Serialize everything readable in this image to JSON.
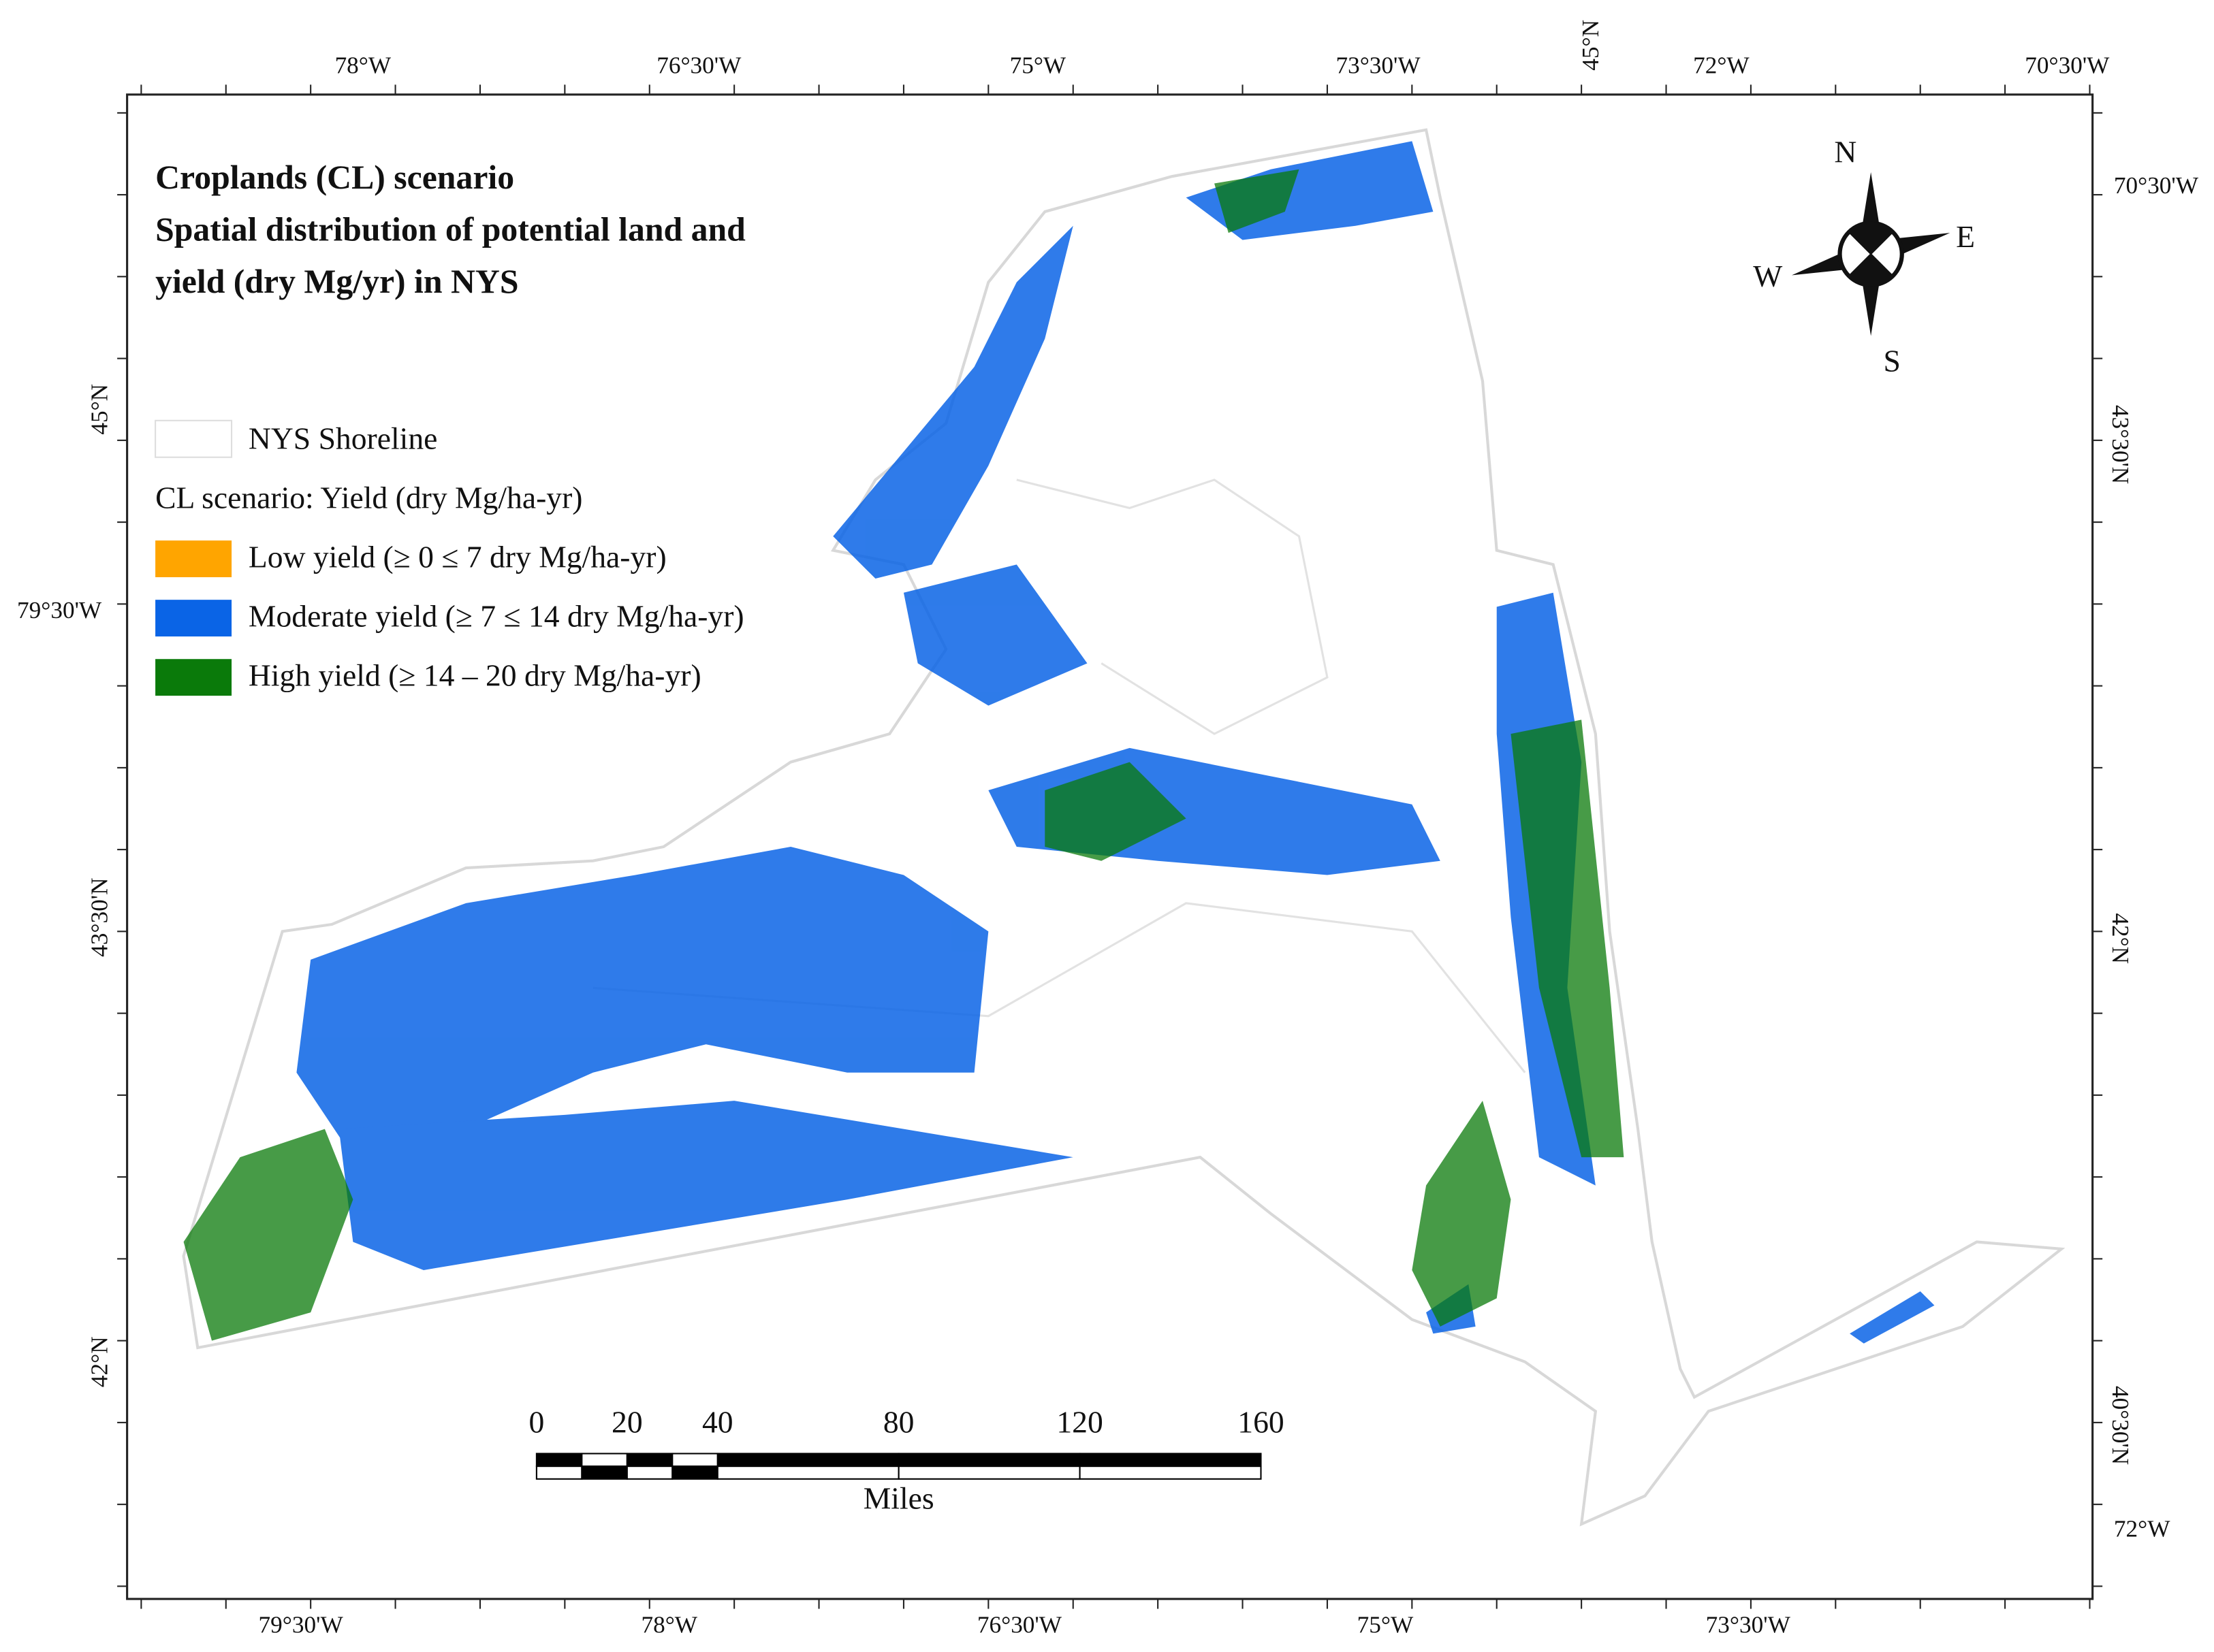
{
  "title": {
    "lines": [
      "Croplands (CL) scenario",
      "Spatial distribution of potential land and",
      "yield (dry Mg/yr) in NYS"
    ]
  },
  "legend": {
    "shoreline": "NYS Shoreline",
    "heading": "CL scenario: Yield (dry Mg/ha-yr)",
    "items": [
      {
        "label": "Low yield (≥ 0 ≤ 7 dry Mg/ha-yr)",
        "color": "#ffa500"
      },
      {
        "label": "Moderate yield (≥ 7 ≤ 14 dry Mg/ha-yr)",
        "color": "#0a64e6"
      },
      {
        "label": "High yield (≥ 14 – 20 dry Mg/ha-yr)",
        "color": "#0a7a0a"
      }
    ]
  },
  "compass": {
    "n": "N",
    "e": "E",
    "s": "S",
    "w": "W"
  },
  "scale_bar": {
    "ticks": [
      0,
      20,
      40,
      80,
      120,
      160
    ],
    "unit": "Miles"
  },
  "graticule": {
    "top": [
      "78°W",
      "76°30'W",
      "75°W",
      "73°30'W",
      "45°N",
      "72°W",
      "70°30'W"
    ],
    "bottom": [
      "79°30'W",
      "78°W",
      "76°30'W",
      "75°W",
      "73°30'W"
    ],
    "left": [
      "45°N",
      "79°30'W",
      "43°30'N",
      "42°N"
    ],
    "right": [
      "70°30'W",
      "43°30'N",
      "42°N",
      "40°30'N",
      "72°W"
    ]
  }
}
